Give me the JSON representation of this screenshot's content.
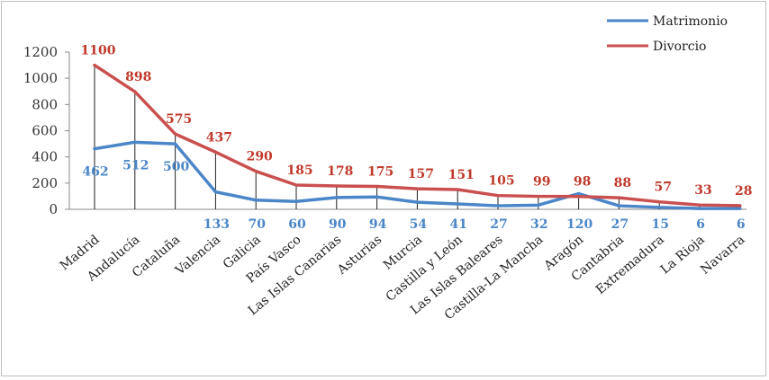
{
  "chart_data": {
    "type": "line",
    "categories": [
      "Madrid",
      "Andalucía",
      "Cataluña",
      "Valencia",
      "Galicia",
      "País Vasco",
      "Las Islas Canarias",
      "Asturias",
      "Murcia",
      "Castilla y León",
      "Las Islas Baleares",
      "Castilla-La Mancha",
      "Aragón",
      "Cantabria",
      "Extremadura",
      "La Rioja",
      "Navarra"
    ],
    "series": [
      {
        "name": "Matrimonio",
        "color": "#4a86c8",
        "values": [
          462,
          512,
          500,
          133,
          70,
          60,
          90,
          94,
          54,
          41,
          27,
          32,
          120,
          27,
          15,
          6,
          6
        ],
        "labels": [
          "462",
          "512",
          "500",
          "133",
          "70",
          "60",
          "90",
          "94",
          "54",
          "41",
          "27",
          "32",
          "120",
          "27",
          "15",
          "6",
          "6"
        ]
      },
      {
        "name": "Divorcio",
        "color": "#c9504f",
        "values": [
          1100,
          898,
          575,
          437,
          290,
          185,
          178,
          175,
          157,
          151,
          105,
          99,
          98,
          88,
          57,
          33,
          28
        ],
        "labels": [
          "1100",
          "898",
          "575",
          "437",
          "290",
          "185",
          "178",
          "175",
          "157",
          "151",
          "105",
          "99",
          "98",
          "88",
          "57",
          "33",
          "28"
        ]
      }
    ],
    "y_ticks": [
      "0",
      "200",
      "400",
      "600",
      "800",
      "1000",
      "1200"
    ],
    "ylim": [
      0,
      1200
    ],
    "title": "",
    "xlabel": "",
    "ylabel": "",
    "legend_position": "top-right",
    "grid": false,
    "drop_lines": true
  }
}
